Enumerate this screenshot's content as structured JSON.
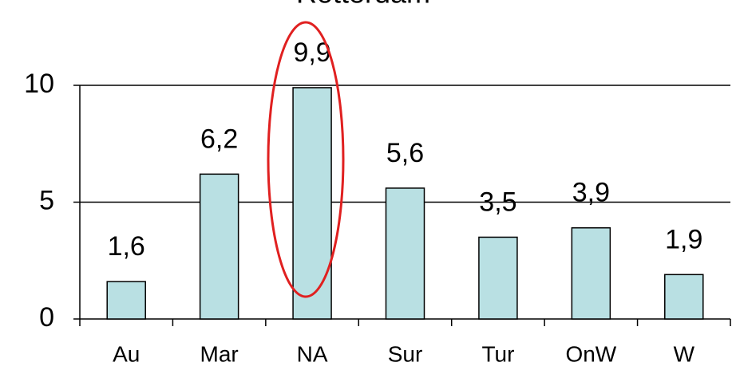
{
  "chart_data": {
    "type": "bar",
    "title": "Rotterdam",
    "categories": [
      "Au",
      "Mar",
      "NA",
      "Sur",
      "Tur",
      "OnW",
      "W"
    ],
    "values": [
      1.6,
      6.2,
      9.9,
      5.6,
      3.5,
      3.9,
      1.9
    ],
    "value_labels": [
      "1,6",
      "6,2",
      "9,9",
      "5,6",
      "3,5",
      "3,9",
      "1,9"
    ],
    "color": "#b9e0e3",
    "ylim": [
      0,
      10
    ],
    "yticks": [
      0,
      5,
      10
    ],
    "grid": true
  }
}
